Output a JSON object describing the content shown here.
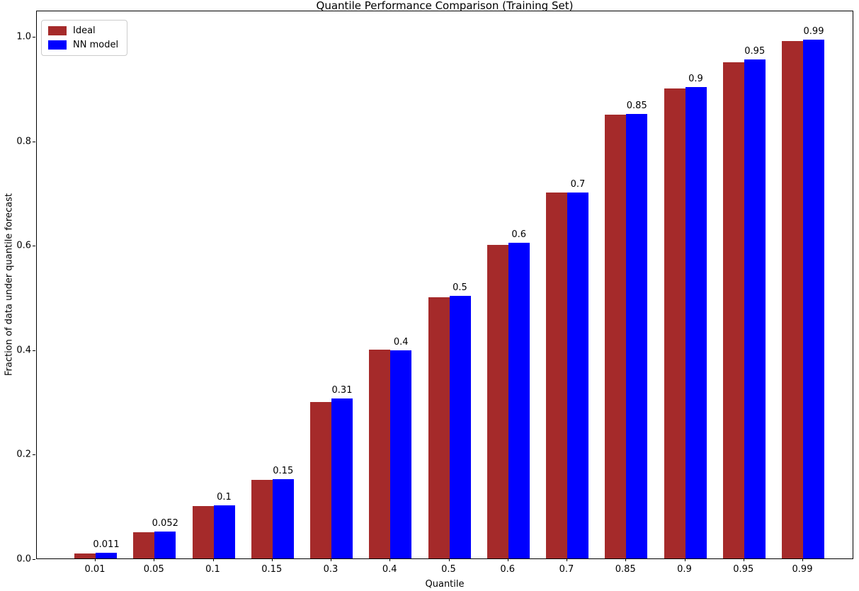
{
  "figure": {
    "title": "Quantile Performance Comparison (Training Set)",
    "xlabel": "Quantile",
    "ylabel": "Fraction of data under quantile forecast"
  },
  "chart_data": {
    "type": "bar",
    "title": "Quantile Performance Comparison (Training Set)",
    "xlabel": "Quantile",
    "ylabel": "Fraction of data under quantile forecast",
    "categories": [
      "0.01",
      "0.05",
      "0.1",
      "0.15",
      "0.3",
      "0.4",
      "0.5",
      "0.6",
      "0.7",
      "0.85",
      "0.9",
      "0.95",
      "0.99"
    ],
    "series": [
      {
        "name": "Ideal",
        "color": "#A52A2A",
        "values": [
          0.01,
          0.05,
          0.1,
          0.15,
          0.3,
          0.4,
          0.5,
          0.6,
          0.7,
          0.85,
          0.9,
          0.95,
          0.99
        ]
      },
      {
        "name": "NN model",
        "color": "#0000FF",
        "values": [
          0.011,
          0.052,
          0.102,
          0.152,
          0.306,
          0.398,
          0.503,
          0.605,
          0.701,
          0.851,
          0.903,
          0.955,
          0.993
        ],
        "value_labels": [
          "0.011",
          "0.052",
          "0.1",
          "0.15",
          "0.31",
          "0.4",
          "0.5",
          "0.6",
          "0.7",
          "0.85",
          "0.9",
          "0.95",
          "0.99"
        ]
      }
    ],
    "ylim": [
      0.0,
      1.05
    ],
    "yticks": [
      0.0,
      0.2,
      0.4,
      0.6,
      0.8,
      1.0
    ],
    "ytick_labels": [
      "0.0",
      "0.2",
      "0.4",
      "0.6",
      "0.8",
      "1.0"
    ],
    "grid": false,
    "legend_position": "upper left"
  },
  "legend": {
    "items": [
      {
        "label": "Ideal",
        "color": "#A52A2A"
      },
      {
        "label": "NN model",
        "color": "#0000FF"
      }
    ]
  }
}
